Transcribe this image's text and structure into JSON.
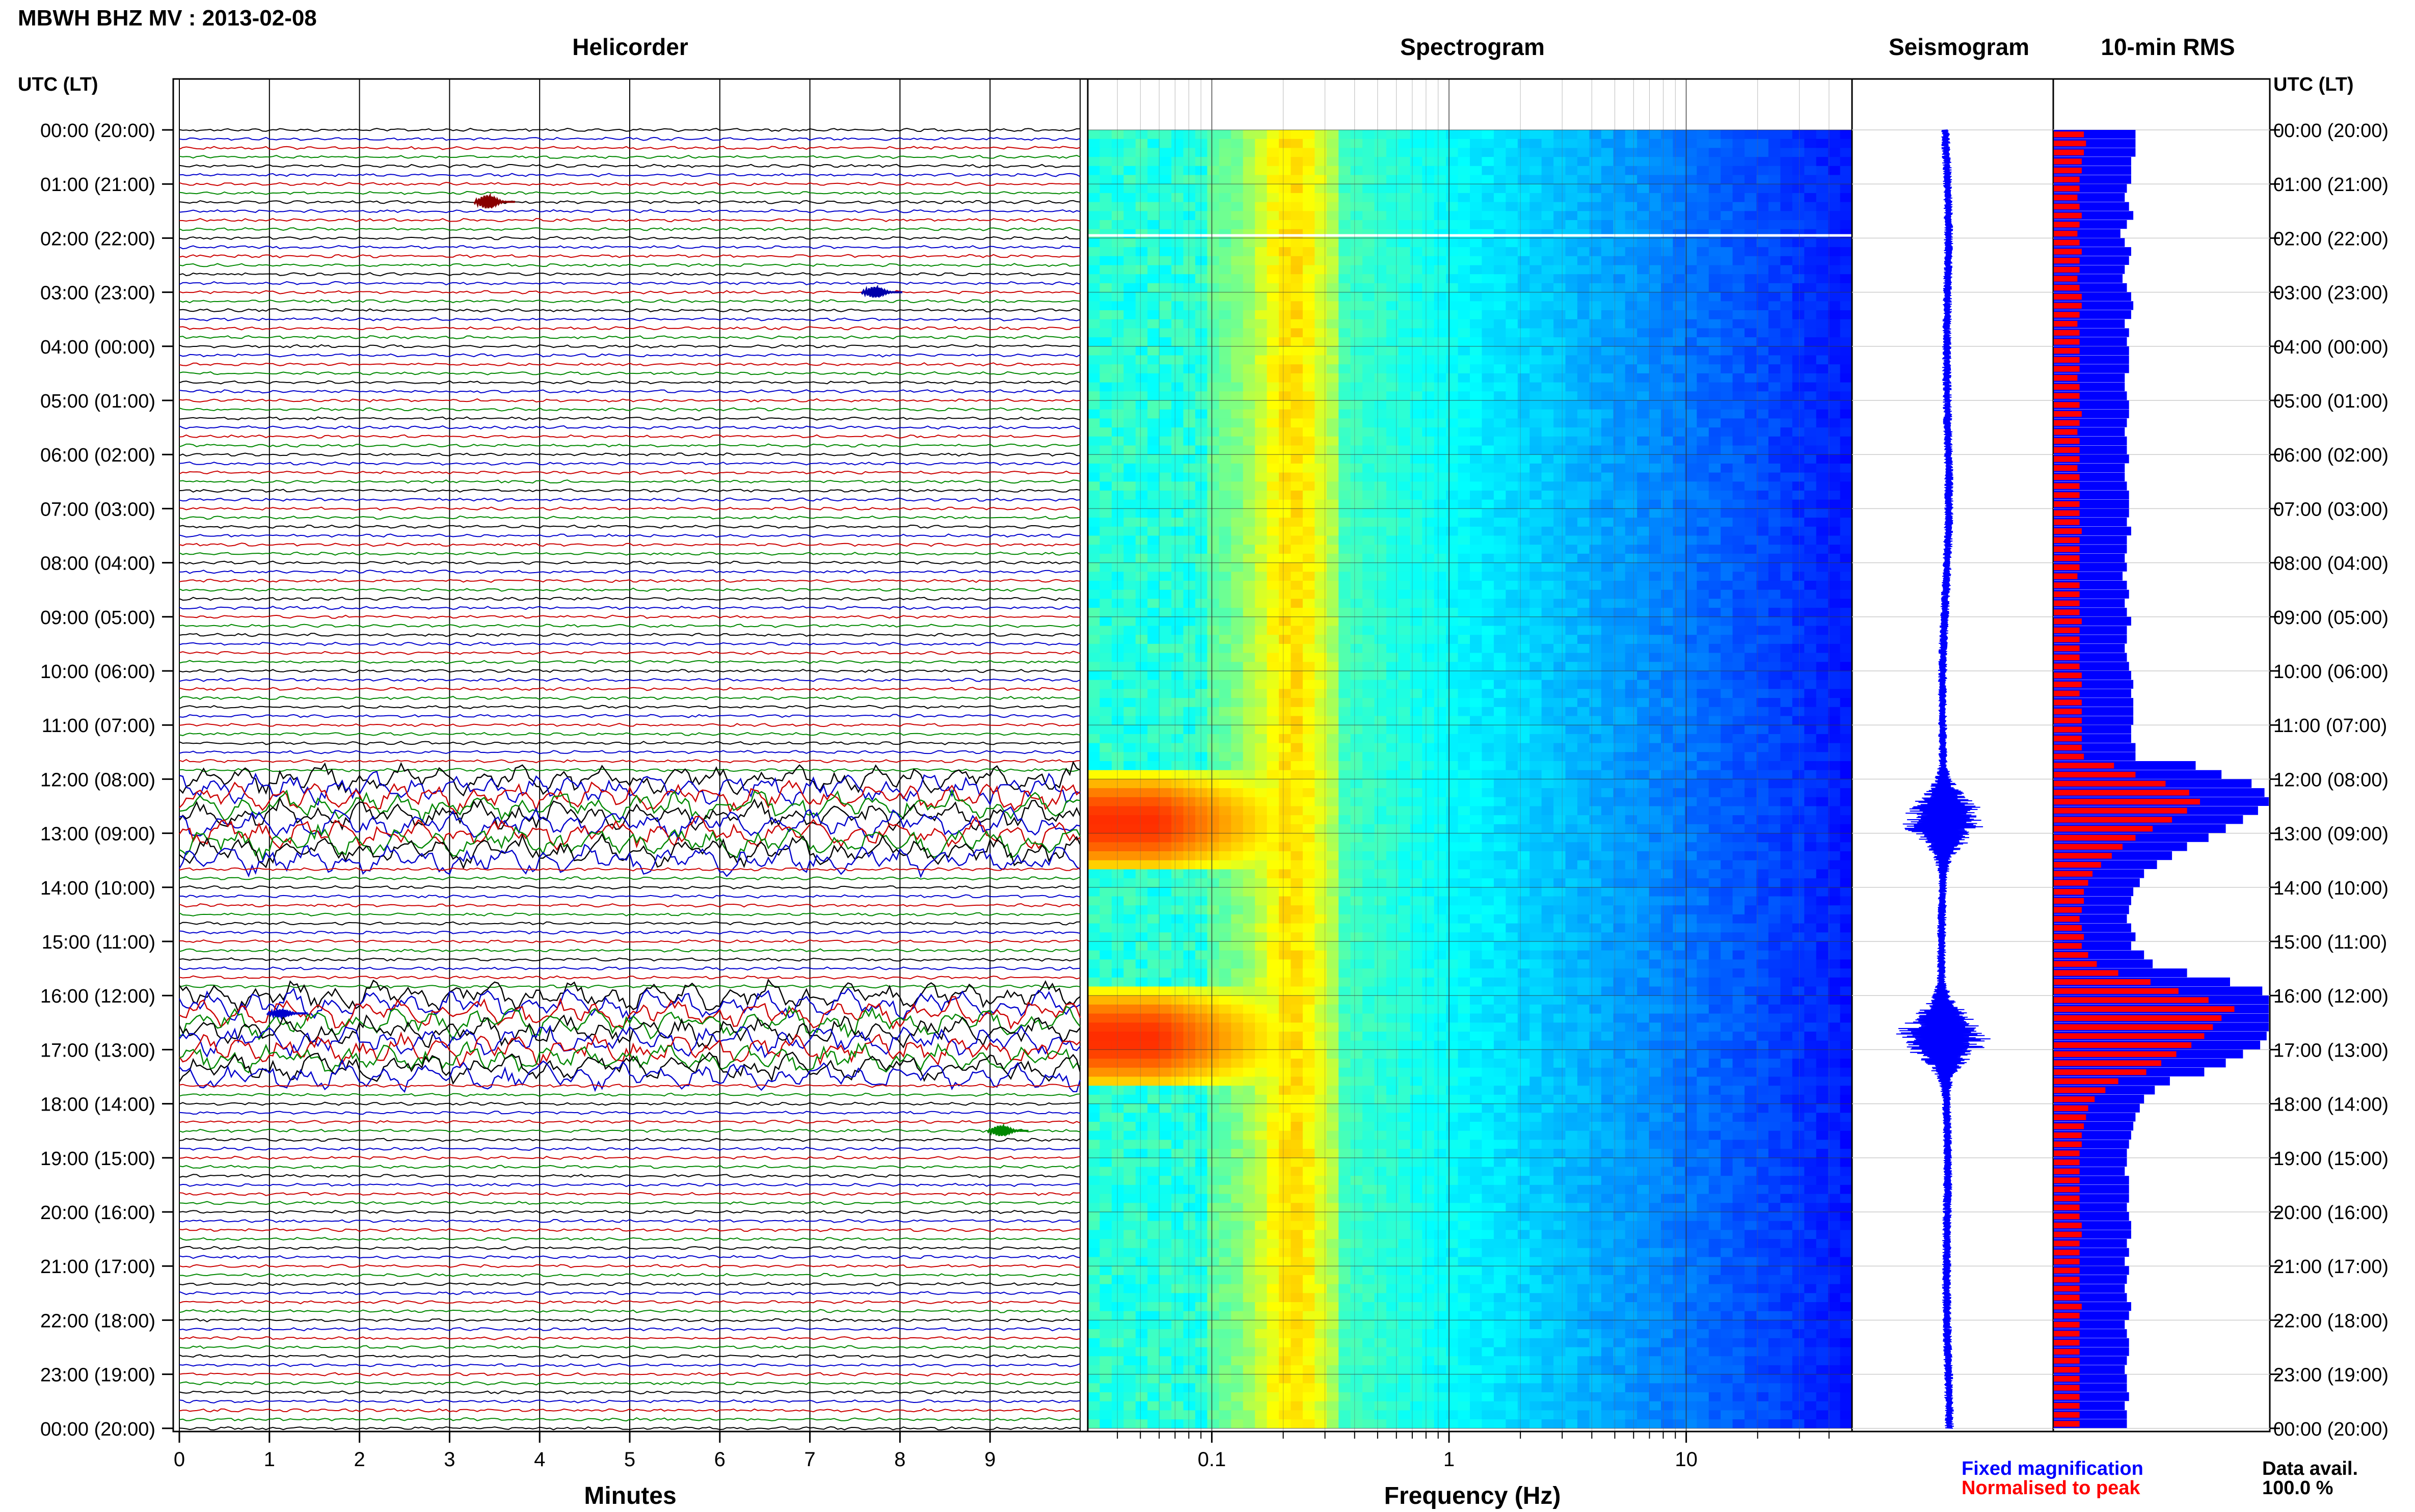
{
  "page": {
    "title": "MBWH BHZ MV : 2013-02-08",
    "panels": {
      "helicorder": "Helicorder",
      "spectrogram": "Spectrogram",
      "seismogram": "Seismogram",
      "rms": "10-min RMS"
    },
    "time_axis_label": "UTC (LT)",
    "time_labels": [
      "00:00 (20:00)",
      "01:00 (21:00)",
      "02:00 (22:00)",
      "03:00 (23:00)",
      "04:00 (00:00)",
      "05:00 (01:00)",
      "06:00 (02:00)",
      "07:00 (03:00)",
      "08:00 (04:00)",
      "09:00 (05:00)",
      "10:00 (06:00)",
      "11:00 (07:00)",
      "12:00 (08:00)",
      "13:00 (09:00)",
      "14:00 (10:00)",
      "15:00 (11:00)",
      "16:00 (12:00)",
      "17:00 (13:00)",
      "18:00 (14:00)",
      "19:00 (15:00)",
      "20:00 (16:00)",
      "21:00 (17:00)",
      "22:00 (18:00)",
      "23:00 (19:00)",
      "00:00 (20:00)"
    ],
    "minutes_axis": {
      "label": "Minutes",
      "ticks": [
        "0",
        "1",
        "2",
        "3",
        "4",
        "5",
        "6",
        "7",
        "8",
        "9"
      ]
    },
    "frequency_axis": {
      "label": "Frequency (Hz)",
      "ticks": [
        "0.1",
        "1",
        "10"
      ]
    },
    "legend": {
      "fixed": "Fixed magnification",
      "normalised": "Normalised to peak",
      "fixed_color": "#0000ff",
      "normalised_color": "#ff0000"
    },
    "data_avail": {
      "label": "Data avail.",
      "value": "100.0 %"
    },
    "colors": {
      "trace_cycle": [
        "#000000",
        "#0000cc",
        "#cc0000",
        "#008800"
      ],
      "seismogram": "#0000ff",
      "rms_fixed": "#0000ff",
      "rms_normalised": "#ff0000"
    }
  },
  "chart_data": [
    {
      "type": "line",
      "name": "helicorder",
      "title": "Helicorder",
      "xlabel": "Minutes",
      "xlim": [
        0,
        10
      ],
      "rows_per_hour": 6,
      "total_rows": 144,
      "row_minutes": 10,
      "events": [
        {
          "hour": 1.33,
          "minute": 3.5,
          "amp": 5,
          "color": "#880000"
        },
        {
          "hour": 3.0,
          "minute": 7.8,
          "amp": 4,
          "color": "#0000aa"
        },
        {
          "hour": 18.5,
          "minute": 9.2,
          "amp": 4,
          "color": "#008800"
        },
        {
          "hour": 16.33,
          "minute": 1.2,
          "amp": 3,
          "color": "#0000cc"
        }
      ],
      "high_amplitude_intervals_utc_hours": [
        [
          11.9,
          13.6
        ],
        [
          15.9,
          17.6
        ]
      ]
    },
    {
      "type": "heatmap",
      "name": "spectrogram",
      "title": "Spectrogram",
      "xlabel": "Frequency (Hz)",
      "xscale": "log",
      "xlim": [
        0.03,
        50
      ],
      "ylim_utc_hours": [
        0,
        24
      ],
      "colormap": [
        "#00007f",
        "#0000ff",
        "#0080ff",
        "#00ffff",
        "#80ff80",
        "#ffff00",
        "#ff8000",
        "#ff0000"
      ],
      "energy_peak_hz": 0.06,
      "high_energy_intervals_utc_hours": [
        [
          11.9,
          13.7
        ],
        [
          15.9,
          17.7
        ]
      ]
    },
    {
      "type": "line",
      "name": "seismogram",
      "title": "Seismogram",
      "ylim_utc_hours": [
        0,
        24
      ],
      "bursts_utc_hours": [
        [
          12.0,
          13.5,
          0.9
        ],
        [
          16.0,
          17.5,
          1.0
        ]
      ]
    },
    {
      "type": "bar",
      "name": "rms",
      "title": "10-min RMS",
      "series": [
        {
          "name": "Fixed magnification",
          "color": "#0000ff",
          "values": [
            0.38,
            0.38,
            0.38,
            0.36,
            0.36,
            0.36,
            0.34,
            0.33,
            0.35,
            0.37,
            0.34,
            0.31,
            0.33,
            0.36,
            0.35,
            0.33,
            0.32,
            0.34,
            0.36,
            0.37,
            0.36,
            0.33,
            0.35,
            0.34,
            0.35,
            0.35,
            0.35,
            0.33,
            0.33,
            0.34,
            0.35,
            0.35,
            0.34,
            0.33,
            0.34,
            0.34,
            0.35,
            0.33,
            0.33,
            0.34,
            0.35,
            0.35,
            0.35,
            0.34,
            0.36,
            0.34,
            0.34,
            0.33,
            0.34,
            0.32,
            0.34,
            0.35,
            0.33,
            0.34,
            0.36,
            0.34,
            0.34,
            0.33,
            0.34,
            0.35,
            0.36,
            0.37,
            0.36,
            0.37,
            0.37,
            0.37,
            0.36,
            0.36,
            0.38,
            0.38,
            0.66,
            0.78,
            0.92,
            0.98,
            1.0,
            0.95,
            0.88,
            0.8,
            0.72,
            0.62,
            0.55,
            0.48,
            0.42,
            0.4,
            0.37,
            0.36,
            0.35,
            0.34,
            0.36,
            0.38,
            0.36,
            0.42,
            0.46,
            0.62,
            0.82,
            0.97,
            1.0,
            1.0,
            1.0,
            1.0,
            0.99,
            0.96,
            0.88,
            0.8,
            0.7,
            0.54,
            0.47,
            0.42,
            0.4,
            0.38,
            0.37,
            0.36,
            0.35,
            0.34,
            0.34,
            0.33,
            0.35,
            0.35,
            0.35,
            0.34,
            0.35,
            0.36,
            0.36,
            0.34,
            0.35,
            0.33,
            0.35,
            0.34,
            0.33,
            0.34,
            0.36,
            0.35,
            0.33,
            0.34,
            0.35,
            0.35,
            0.34,
            0.33,
            0.34,
            0.34,
            0.35,
            0.33,
            0.34,
            0.34
          ]
        },
        {
          "name": "Normalised to peak",
          "color": "#ff0000",
          "values": [
            0.14,
            0.15,
            0.14,
            0.13,
            0.13,
            0.12,
            0.12,
            0.11,
            0.12,
            0.13,
            0.12,
            0.11,
            0.12,
            0.13,
            0.12,
            0.12,
            0.11,
            0.12,
            0.13,
            0.13,
            0.12,
            0.11,
            0.12,
            0.12,
            0.12,
            0.12,
            0.12,
            0.11,
            0.12,
            0.12,
            0.12,
            0.13,
            0.12,
            0.11,
            0.12,
            0.12,
            0.12,
            0.11,
            0.12,
            0.12,
            0.12,
            0.12,
            0.12,
            0.12,
            0.13,
            0.12,
            0.12,
            0.12,
            0.12,
            0.11,
            0.12,
            0.12,
            0.12,
            0.12,
            0.13,
            0.12,
            0.12,
            0.12,
            0.12,
            0.12,
            0.13,
            0.13,
            0.12,
            0.13,
            0.13,
            0.13,
            0.13,
            0.13,
            0.13,
            0.14,
            0.28,
            0.38,
            0.52,
            0.63,
            0.68,
            0.62,
            0.55,
            0.46,
            0.38,
            0.32,
            0.27,
            0.22,
            0.18,
            0.16,
            0.14,
            0.14,
            0.13,
            0.12,
            0.13,
            0.14,
            0.13,
            0.16,
            0.2,
            0.3,
            0.45,
            0.58,
            0.72,
            0.84,
            0.78,
            0.74,
            0.7,
            0.64,
            0.57,
            0.5,
            0.43,
            0.3,
            0.24,
            0.19,
            0.16,
            0.15,
            0.14,
            0.13,
            0.13,
            0.12,
            0.12,
            0.12,
            0.12,
            0.12,
            0.12,
            0.12,
            0.12,
            0.13,
            0.13,
            0.12,
            0.12,
            0.12,
            0.12,
            0.12,
            0.12,
            0.12,
            0.13,
            0.12,
            0.12,
            0.12,
            0.12,
            0.12,
            0.12,
            0.12,
            0.12,
            0.12,
            0.12,
            0.12,
            0.12,
            0.12
          ]
        }
      ]
    }
  ]
}
